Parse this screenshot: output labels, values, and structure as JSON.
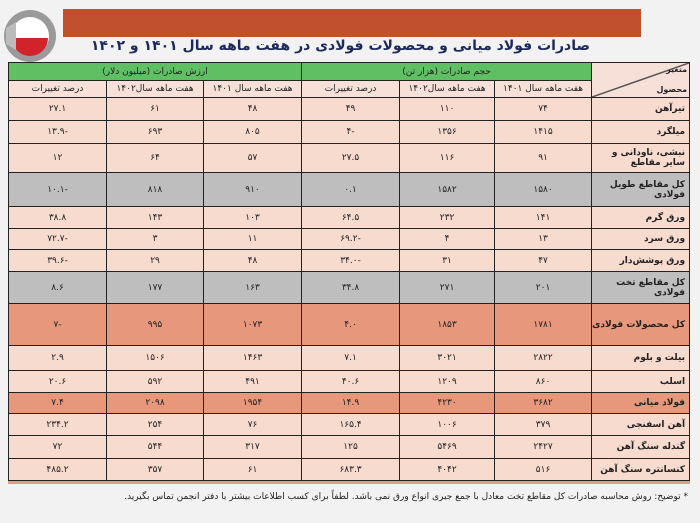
{
  "title": "صادرات فولاد میانی و محصولات فولادی در هفت ماهه سال ۱۴۰۱ و ۱۴۰۲",
  "colors": {
    "banner": "#c1502e",
    "header": "#5fbf63",
    "row": "#f8dbcf",
    "subtotal": "#bebebe",
    "total": "#e6977c"
  },
  "table": {
    "corner_top": "متغیر",
    "corner_bottom": "محصول",
    "group_volume": "حجم صادرات (هزار تن)",
    "group_value": "ارزش صادرات (میلیون دلار)",
    "sub_headers": [
      "هفت ماهه سال ۱۴۰۱",
      "هفت ماهه سال۱۴۰۲",
      "درصد تغییرات",
      "هفت ماهه سال ۱۴۰۱",
      "هفت ماهه سال۱۴۰۲",
      "درصد تغییرات"
    ],
    "rows": [
      {
        "name": "تیرآهن",
        "style": "normal",
        "values": [
          "۷۴",
          "۱۱۰",
          "۴۹",
          "۴۸",
          "۶۱",
          "۲۷.۱"
        ]
      },
      {
        "name": "میلگرد",
        "style": "normal",
        "values": [
          "۱۴۱۵",
          "۱۳۵۶",
          "-۴",
          "۸۰۵",
          "۶۹۳",
          "-۱۳.۹"
        ]
      },
      {
        "name": "نبشی، ناودانی و سایر مقاطع",
        "style": "normal",
        "values": [
          "۹۱",
          "۱۱۶",
          "۲۷.۵",
          "۵۷",
          "۶۴",
          "۱۲"
        ]
      },
      {
        "name": "کل مقاطع طویل فولادی",
        "style": "gray",
        "values": [
          "۱۵۸۰",
          "۱۵۸۲",
          "۰.۱",
          "۹۱۰",
          "۸۱۸",
          "-۱۰.۱"
        ]
      },
      {
        "name": "ورق گرم",
        "style": "normal",
        "values": [
          "۱۴۱",
          "۲۳۲",
          "۶۴.۵",
          "۱۰۳",
          "۱۴۳",
          "۳۸.۸"
        ]
      },
      {
        "name": "ورق سرد",
        "style": "normal",
        "values": [
          "۱۳",
          "۴",
          "-۶۹.۲",
          "۱۱",
          "۳",
          "-۷۲.۷"
        ]
      },
      {
        "name": "ورق پوشش‌دار",
        "style": "normal",
        "values": [
          "۴۷",
          "۳۱",
          "-۳۴.۰",
          "۴۸",
          "۲۹",
          "-۳۹.۶"
        ]
      },
      {
        "name": "کل مقاطع تخت فولادی",
        "style": "gray",
        "values": [
          "۲۰۱",
          "۲۷۱",
          "۳۴.۸",
          "۱۶۳",
          "۱۷۷",
          "۸.۶"
        ]
      },
      {
        "name": "کل محصولات فولادی",
        "style": "orange",
        "values": [
          "۱۷۸۱",
          "۱۸۵۳",
          "۴.۰",
          "۱۰۷۳",
          "۹۹۵",
          "-۷"
        ]
      },
      {
        "name": "بیلت و بلوم",
        "style": "normal",
        "values": [
          "۲۸۲۲",
          "۳۰۲۱",
          "۷.۱",
          "۱۴۶۳",
          "۱۵۰۶",
          "۲.۹"
        ]
      },
      {
        "name": "اسلب",
        "style": "normal",
        "values": [
          "۸۶۰",
          "۱۲۰۹",
          "۴۰.۶",
          "۴۹۱",
          "۵۹۲",
          "۲۰.۶"
        ]
      },
      {
        "name": "فولاد میانی",
        "style": "orange",
        "values": [
          "۳۶۸۲",
          "۴۲۳۰",
          "۱۴.۹",
          "۱۹۵۴",
          "۲۰۹۸",
          "۷.۴"
        ]
      },
      {
        "name": "آهن اسفنجی",
        "style": "normal",
        "values": [
          "۳۷۹",
          "۱۰۰۶",
          "۱۶۵.۴",
          "۷۶",
          "۲۵۴",
          "۲۳۴.۲"
        ]
      },
      {
        "name": "گندله سنگ آهن",
        "style": "normal",
        "values": [
          "۲۴۲۷",
          "۵۴۶۹",
          "۱۲۵",
          "۳۱۷",
          "۵۴۴",
          "۷۲"
        ]
      },
      {
        "name": "کنسانتره سنگ آهن",
        "style": "normal",
        "values": [
          "۵۱۶",
          "۴۰۴۲",
          "۶۸۳.۳",
          "۶۱",
          "۳۵۷",
          "۴۸۵.۲"
        ]
      }
    ]
  },
  "note": "* توضیح: روش محاسبه صادرات کل مقاطع تخت معادل با جمع جبری انواع ورق نمی باشد. لطفاً برای کسب اطلاعات بیشتر با دفتر انجمن تماس بگیرید."
}
